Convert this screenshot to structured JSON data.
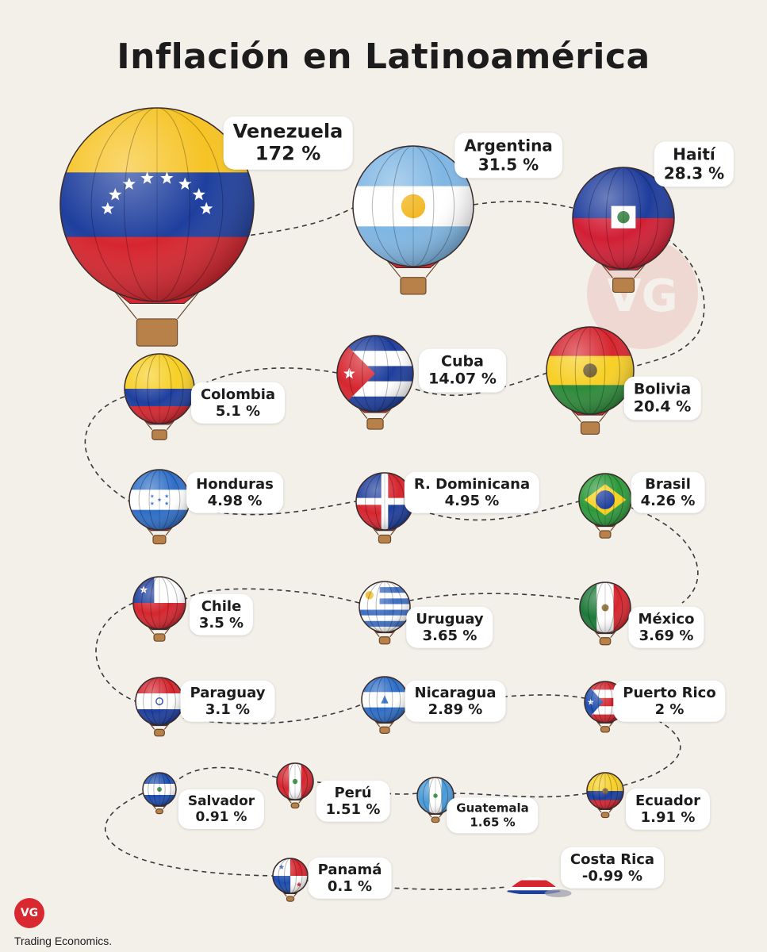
{
  "title": "Inflación en Latinoamérica",
  "source": "Trading Economics.",
  "logo": "VG",
  "chart_data": {
    "type": "other",
    "unit": "%",
    "items": [
      {
        "country": "Venezuela",
        "value": 172,
        "label": "172 %",
        "flag": "venezuela"
      },
      {
        "country": "Argentina",
        "value": 31.5,
        "label": "31.5 %",
        "flag": "argentina"
      },
      {
        "country": "Haití",
        "value": 28.3,
        "label": "28.3 %",
        "flag": "haiti"
      },
      {
        "country": "Colombia",
        "value": 5.1,
        "label": "5.1 %",
        "flag": "colombia"
      },
      {
        "country": "Cuba",
        "value": 14.07,
        "label": "14.07 %",
        "flag": "cuba"
      },
      {
        "country": "Bolivia",
        "value": 20.4,
        "label": "20.4 %",
        "flag": "bolivia"
      },
      {
        "country": "Honduras",
        "value": 4.98,
        "label": "4.98 %",
        "flag": "honduras"
      },
      {
        "country": "R. Dominicana",
        "value": 4.95,
        "label": "4.95 %",
        "flag": "dominican-republic"
      },
      {
        "country": "Brasil",
        "value": 4.26,
        "label": "4.26 %",
        "flag": "brasil"
      },
      {
        "country": "Chile",
        "value": 3.5,
        "label": "3.5 %",
        "flag": "chile"
      },
      {
        "country": "Uruguay",
        "value": 3.65,
        "label": "3.65 %",
        "flag": "uruguay"
      },
      {
        "country": "México",
        "value": 3.69,
        "label": "3.69 %",
        "flag": "mexico"
      },
      {
        "country": "Paraguay",
        "value": 3.1,
        "label": "3.1 %",
        "flag": "paraguay"
      },
      {
        "country": "Nicaragua",
        "value": 2.89,
        "label": "2.89 %",
        "flag": "nicaragua"
      },
      {
        "country": "Puerto Rico",
        "value": 2,
        "label": "2 %",
        "flag": "puerto-rico"
      },
      {
        "country": "Salvador",
        "value": 0.91,
        "label": "0.91 %",
        "flag": "el-salvador"
      },
      {
        "country": "Perú",
        "value": 1.51,
        "label": "1.51 %",
        "flag": "peru"
      },
      {
        "country": "Guatemala",
        "value": 1.65,
        "label": "1.65 %",
        "flag": "guatemala"
      },
      {
        "country": "Ecuador",
        "value": 1.91,
        "label": "1.91 %",
        "flag": "ecuador"
      },
      {
        "country": "Panamá",
        "value": 0.1,
        "label": "0.1 %",
        "flag": "panama"
      },
      {
        "country": "Costa Rica",
        "value": -0.99,
        "label": "-0.99 %",
        "flag": "costa-rica"
      }
    ]
  }
}
